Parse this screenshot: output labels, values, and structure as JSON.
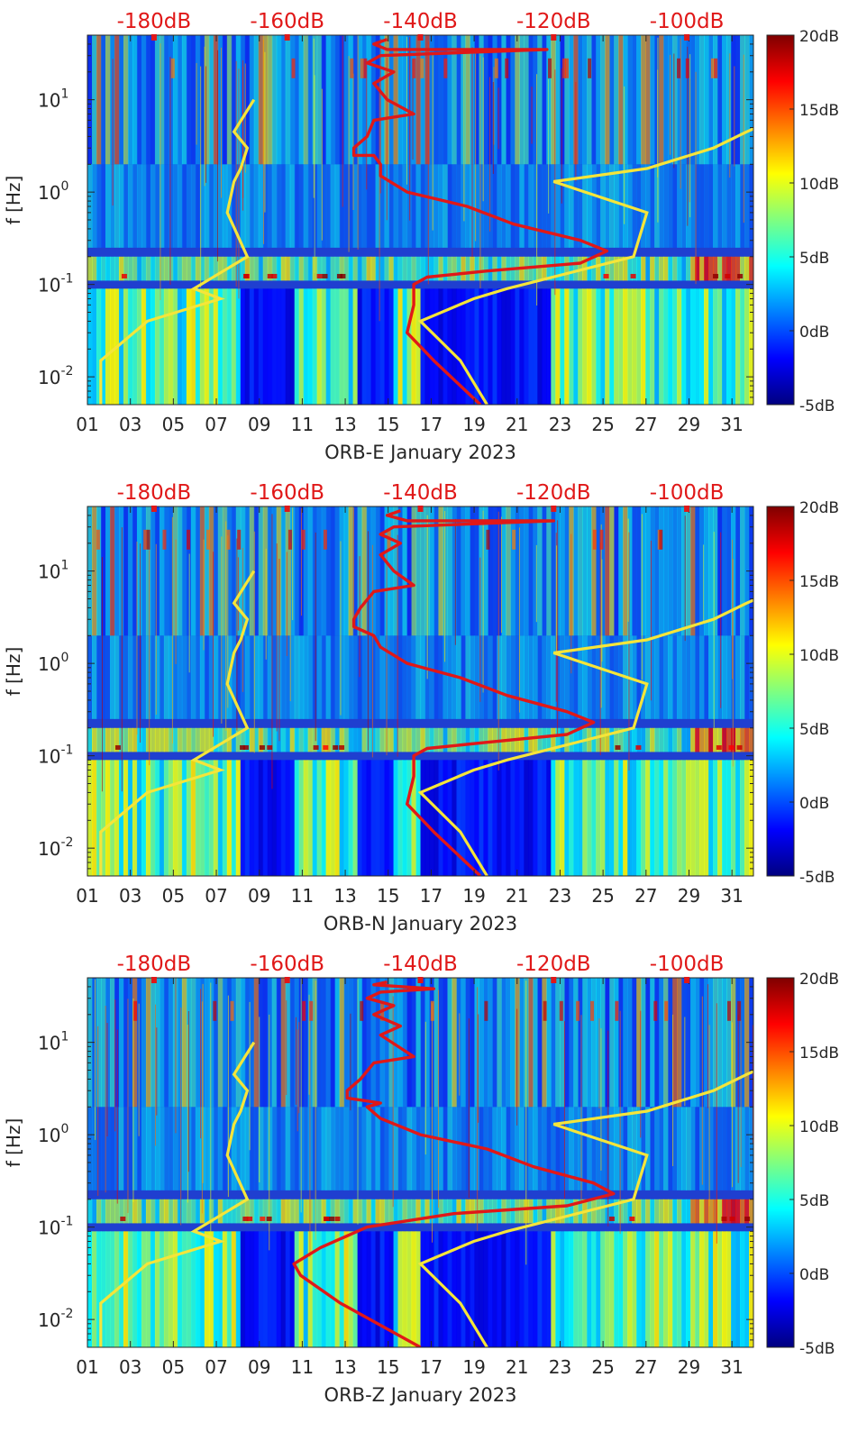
{
  "colorbar_ticks": [
    "20dB",
    "15dB",
    "10dB",
    "5dB",
    "0dB",
    "-5dB"
  ],
  "top_axis_ticks": [
    "-180dB",
    "-160dB",
    "-140dB",
    "-120dB",
    "-100dB"
  ],
  "y_axis": {
    "label": "f [Hz]",
    "ticks": [
      {
        "base": "10",
        "exp": "1"
      },
      {
        "base": "10",
        "exp": "0"
      },
      {
        "base": "10",
        "exp": "-1"
      },
      {
        "base": "10",
        "exp": "-2"
      }
    ]
  },
  "x_ticks": [
    "01",
    "03",
    "05",
    "07",
    "09",
    "11",
    "13",
    "15",
    "17",
    "19",
    "21",
    "23",
    "25",
    "27",
    "29",
    "31"
  ],
  "colors": {
    "spectrogram_base": "#1f3fd0",
    "noise_model": "#f5e53a",
    "station_psd": "#e01818",
    "top_axis_text": "#e01818"
  },
  "chart_data": [
    {
      "type": "heatmap",
      "title": "",
      "xlabel": "ORB-E January 2023",
      "ylabel": "f [Hz]",
      "x_range_days": [
        1,
        32
      ],
      "y_range_hz": [
        0.005,
        50
      ],
      "y_scale": "log",
      "color_range_db": [
        -5,
        20
      ],
      "top_axis_range_db": [
        -190,
        -90
      ],
      "noise_model_curve": {
        "name": "noise model bounds (yellow)",
        "low_dB": [
          -165,
          -168,
          -166,
          -167,
          -168,
          -169,
          -166,
          -174,
          -170,
          -181,
          -188,
          -188
        ],
        "high_dB": [
          -80,
          -91,
          -96,
          -106,
          -120,
          -106,
          -108,
          -127,
          -132,
          -140,
          -134,
          -130
        ],
        "freq_hz": [
          10,
          4.5,
          3,
          1.8,
          1.3,
          0.6,
          0.2,
          0.09,
          0.07,
          0.04,
          0.015,
          0.005
        ]
      },
      "station_psd_curve": {
        "name": "station PSD (red)",
        "points_dB_hz": [
          [
            -145,
            45
          ],
          [
            -147,
            40
          ],
          [
            -145,
            35
          ],
          [
            -121,
            35
          ],
          [
            -146,
            30
          ],
          [
            -148,
            25
          ],
          [
            -144,
            20
          ],
          [
            -147,
            15
          ],
          [
            -145,
            10
          ],
          [
            -141,
            7
          ],
          [
            -147,
            6
          ],
          [
            -148,
            4
          ],
          [
            -150,
            3
          ],
          [
            -150,
            2.5
          ],
          [
            -147,
            2.5
          ],
          [
            -146,
            2
          ],
          [
            -146,
            1.5
          ],
          [
            -142,
            1
          ],
          [
            -133,
            0.7
          ],
          [
            -126,
            0.45
          ],
          [
            -116,
            0.3
          ],
          [
            -112,
            0.23
          ],
          [
            -116,
            0.17
          ],
          [
            -130,
            0.14
          ],
          [
            -139,
            0.12
          ],
          [
            -141,
            0.1
          ],
          [
            -141,
            0.06
          ],
          [
            -142,
            0.03
          ],
          [
            -138,
            0.015
          ],
          [
            -131,
            0.005
          ]
        ]
      }
    },
    {
      "type": "heatmap",
      "title": "",
      "xlabel": "ORB-N January 2023",
      "ylabel": "f [Hz]",
      "x_range_days": [
        1,
        32
      ],
      "y_range_hz": [
        0.005,
        50
      ],
      "y_scale": "log",
      "color_range_db": [
        -5,
        20
      ],
      "top_axis_range_db": [
        -190,
        -90
      ],
      "noise_model_curve": {
        "name": "noise model bounds (yellow)",
        "low_dB": [
          -165,
          -168,
          -166,
          -167,
          -168,
          -169,
          -166,
          -174,
          -170,
          -181,
          -188,
          -188
        ],
        "high_dB": [
          -80,
          -91,
          -96,
          -106,
          -120,
          -106,
          -108,
          -127,
          -132,
          -140,
          -134,
          -130
        ],
        "freq_hz": [
          10,
          4.5,
          3,
          1.8,
          1.3,
          0.6,
          0.2,
          0.09,
          0.07,
          0.04,
          0.015,
          0.005
        ]
      },
      "station_psd_curve": {
        "name": "station PSD (red)",
        "points_dB_hz": [
          [
            -143,
            45
          ],
          [
            -145,
            40
          ],
          [
            -142,
            35
          ],
          [
            -120,
            35
          ],
          [
            -144,
            30
          ],
          [
            -146,
            25
          ],
          [
            -143,
            20
          ],
          [
            -146,
            15
          ],
          [
            -144,
            10
          ],
          [
            -141,
            7
          ],
          [
            -147,
            6
          ],
          [
            -149,
            4
          ],
          [
            -150,
            3
          ],
          [
            -150,
            2.5
          ],
          [
            -147,
            2
          ],
          [
            -146,
            1.5
          ],
          [
            -142,
            1
          ],
          [
            -134,
            0.7
          ],
          [
            -127,
            0.45
          ],
          [
            -118,
            0.3
          ],
          [
            -114,
            0.23
          ],
          [
            -118,
            0.17
          ],
          [
            -130,
            0.14
          ],
          [
            -139,
            0.12
          ],
          [
            -141,
            0.1
          ],
          [
            -141,
            0.06
          ],
          [
            -142,
            0.03
          ],
          [
            -138,
            0.015
          ],
          [
            -131,
            0.005
          ]
        ]
      }
    },
    {
      "type": "heatmap",
      "title": "",
      "xlabel": "ORB-Z January 2023",
      "ylabel": "f [Hz]",
      "x_range_days": [
        1,
        32
      ],
      "y_range_hz": [
        0.005,
        50
      ],
      "y_scale": "log",
      "color_range_db": [
        -5,
        20
      ],
      "top_axis_range_db": [
        -190,
        -90
      ],
      "noise_model_curve": {
        "name": "noise model bounds (yellow)",
        "low_dB": [
          -165,
          -168,
          -166,
          -167,
          -168,
          -169,
          -166,
          -174,
          -170,
          -181,
          -188,
          -188
        ],
        "high_dB": [
          -80,
          -91,
          -96,
          -106,
          -120,
          -106,
          -108,
          -127,
          -132,
          -140,
          -134,
          -130
        ],
        "freq_hz": [
          10,
          4.5,
          3,
          1.8,
          1.3,
          0.6,
          0.2,
          0.09,
          0.07,
          0.04,
          0.015,
          0.005
        ]
      },
      "station_psd_curve": {
        "name": "station PSD (red)",
        "points_dB_hz": [
          [
            -145,
            45
          ],
          [
            -147,
            42
          ],
          [
            -138,
            38
          ],
          [
            -146,
            35
          ],
          [
            -148,
            30
          ],
          [
            -144,
            25
          ],
          [
            -147,
            20
          ],
          [
            -143,
            15
          ],
          [
            -146,
            12
          ],
          [
            -141,
            7
          ],
          [
            -147,
            6
          ],
          [
            -149,
            4
          ],
          [
            -151,
            3
          ],
          [
            -151,
            2.5
          ],
          [
            -146,
            2.2
          ],
          [
            -148,
            2
          ],
          [
            -146,
            1.5
          ],
          [
            -140,
            1
          ],
          [
            -130,
            0.7
          ],
          [
            -123,
            0.45
          ],
          [
            -114,
            0.3
          ],
          [
            -111,
            0.23
          ],
          [
            -118,
            0.17
          ],
          [
            -135,
            0.14
          ],
          [
            -148,
            0.1
          ],
          [
            -155,
            0.06
          ],
          [
            -159,
            0.04
          ],
          [
            -158,
            0.03
          ],
          [
            -152,
            0.015
          ],
          [
            -140,
            0.005
          ]
        ]
      }
    }
  ]
}
